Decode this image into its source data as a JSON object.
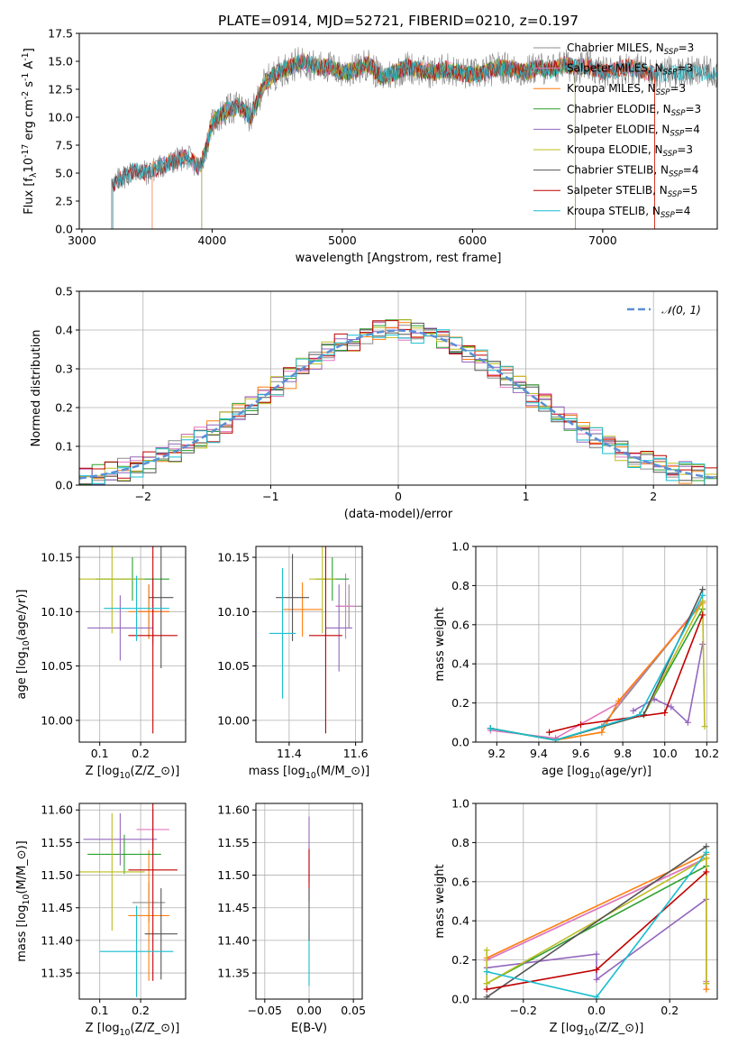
{
  "figure": {
    "title": "PLATE=0914, MJD=52721, FIBERID=0210, z=0.197"
  },
  "colors": {
    "Chabrier MILES": "#8c8c8c",
    "Salpeter MILES": "#e377c2",
    "Kroupa MILES": "#ff7f0e",
    "Chabrier ELODIE": "#2ca02c",
    "Salpeter ELODIE": "#9467bd",
    "Kroupa ELODIE": "#bcbd22",
    "Chabrier STELIB": "#555555",
    "Salpeter STELIB": "#c00000",
    "Kroupa STELIB": "#17becf",
    "orange": "#e07b21",
    "normal": "#5b8fd6"
  },
  "chart_data": [
    {
      "id": "spectrum",
      "type": "line",
      "title": "PLATE=0914, MJD=52721, FIBERID=0210, z=0.197",
      "xlabel": "wavelength [Angstrom, rest frame]",
      "ylabel": "Flux [f$_\\lambda$10$^{-17}$ erg cm$^{-2}$ s$^{-1}$ A$^{-1}$]",
      "xlim": [
        2980,
        7880
      ],
      "ylim": [
        0,
        17.5
      ],
      "xticks": [
        "3000",
        "4000",
        "5000",
        "6000",
        "7000"
      ],
      "yticks": [
        "0.0",
        "2.5",
        "5.0",
        "7.5",
        "10.0",
        "12.5",
        "15.0",
        "17.5"
      ],
      "grid": false,
      "legend_position": "right",
      "legend": [
        {
          "name": "Chabrier MILES",
          "sub": "3"
        },
        {
          "name": "Salpeter MILES",
          "sub": "3"
        },
        {
          "name": "Kroupa MILES",
          "sub": "3"
        },
        {
          "name": "Chabrier ELODIE",
          "sub": "3"
        },
        {
          "name": "Salpeter ELODIE",
          "sub": "4"
        },
        {
          "name": "Kroupa ELODIE",
          "sub": "3"
        },
        {
          "name": "Chabrier STELIB",
          "sub": "4"
        },
        {
          "name": "Salpeter STELIB",
          "sub": "5"
        },
        {
          "name": "Kroupa STELIB",
          "sub": "4"
        }
      ],
      "continuum": {
        "x": [
          3230,
          3300,
          3400,
          3500,
          3600,
          3700,
          3800,
          3900,
          3950,
          4000,
          4100,
          4200,
          4300,
          4400,
          4500,
          4600,
          4700,
          4800,
          4900,
          5000,
          5100,
          5200,
          5300,
          5400,
          5500,
          5600,
          5700,
          5800,
          5900,
          6000,
          6100,
          6200,
          6300,
          6400,
          6500,
          6600,
          6700,
          6800,
          6900,
          7000,
          7100,
          7200,
          7300,
          7400,
          7500
        ],
        "y": [
          3.8,
          4.6,
          5.2,
          5.0,
          5.6,
          6.0,
          6.5,
          5.5,
          7.0,
          9.5,
          10.5,
          11.0,
          10.0,
          13.0,
          14.0,
          14.5,
          15.0,
          14.5,
          14.5,
          14.0,
          14.2,
          14.8,
          13.5,
          14.0,
          14.5,
          14.2,
          14.0,
          14.3,
          14.0,
          13.8,
          14.0,
          14.5,
          14.3,
          14.0,
          14.5,
          14.2,
          14.7,
          14.5,
          14.5,
          14.0,
          14.2,
          14.5,
          14.2,
          13.8,
          14.0
        ]
      },
      "x_range_observed": [
        3230,
        7880
      ]
    },
    {
      "id": "residuals",
      "type": "area",
      "xlabel": "(data-model)/error",
      "ylabel": "Normed distribution",
      "xlim": [
        -2.5,
        2.5
      ],
      "ylim": [
        0,
        0.5
      ],
      "xticks": [
        "−2",
        "−1",
        "0",
        "1",
        "2"
      ],
      "yticks": [
        "0.0",
        "0.1",
        "0.2",
        "0.3",
        "0.4",
        "0.5"
      ],
      "grid": true,
      "legend_position": "top-right",
      "legend": [
        {
          "name": "𝒩(0, 1)"
        }
      ],
      "reference_curve": "normal distribution, mean 0, sigma 1",
      "bin_width": 0.1
    },
    {
      "id": "age_vs_Z",
      "type": "scatter",
      "xlabel": "Z [log$_{10}$(Z/Z$_\\odot$)]",
      "ylabel": "age  [log$_{10}$(age/yr)]",
      "xlim": [
        0.05,
        0.31
      ],
      "ylim": [
        9.98,
        10.16
      ],
      "xticks": [
        "0.1",
        "0.2"
      ],
      "yticks": [
        "10.00",
        "10.05",
        "10.10",
        "10.15"
      ],
      "grid": true,
      "points": [
        {
          "model": "Chabrier MILES",
          "x": 0.22,
          "y": 10.1,
          "xerr": 0.03,
          "yerr": 0.025
        },
        {
          "model": "Salpeter MILES",
          "x": 0.23,
          "y": 10.1,
          "xerr": 0.04,
          "yerr": 0.03
        },
        {
          "model": "Kroupa MILES",
          "x": 0.22,
          "y": 10.1,
          "xerr": 0.05,
          "yerr": 0.025
        },
        {
          "model": "Chabrier ELODIE",
          "x": 0.18,
          "y": 10.13,
          "xerr": 0.09,
          "yerr": 0.02
        },
        {
          "model": "Salpeter ELODIE",
          "x": 0.15,
          "y": 10.085,
          "xerr": 0.08,
          "yerr": 0.03
        },
        {
          "model": "Kroupa ELODIE",
          "x": 0.13,
          "y": 10.13,
          "xerr": 0.08,
          "yerr": 0.05
        },
        {
          "model": "Chabrier STELIB",
          "x": 0.25,
          "y": 10.113,
          "xerr": 0.03,
          "yerr": 0.065
        },
        {
          "model": "Salpeter STELIB",
          "x": 0.23,
          "y": 10.078,
          "xerr": 0.06,
          "yerr": 0.09
        },
        {
          "model": "Kroupa STELIB",
          "x": 0.19,
          "y": 10.103,
          "xerr": 0.08,
          "yerr": 0.03
        }
      ]
    },
    {
      "id": "age_vs_mass",
      "type": "scatter",
      "xlabel": "mass [log$_{10}$(M/M$_\\odot$)]",
      "ylabel": "",
      "xlim": [
        11.3,
        11.62
      ],
      "ylim": [
        9.98,
        10.16
      ],
      "xticks": [
        "11.4",
        "11.6"
      ],
      "yticks": [
        "10.00",
        "10.05",
        "10.10",
        "10.15"
      ],
      "grid": true,
      "points": [
        {
          "model": "Chabrier MILES",
          "x": 11.58,
          "y": 10.105,
          "xerr": 0.04,
          "yerr": 0.02
        },
        {
          "model": "Salpeter MILES",
          "x": 11.57,
          "y": 10.105,
          "xerr": 0.03,
          "yerr": 0.03
        },
        {
          "model": "Kroupa MILES",
          "x": 11.44,
          "y": 10.102,
          "xerr": 0.06,
          "yerr": 0.025
        },
        {
          "model": "Chabrier ELODIE",
          "x": 11.53,
          "y": 10.13,
          "xerr": 0.05,
          "yerr": 0.02
        },
        {
          "model": "Salpeter ELODIE",
          "x": 11.55,
          "y": 10.085,
          "xerr": 0.04,
          "yerr": 0.04
        },
        {
          "model": "Kroupa ELODIE",
          "x": 11.5,
          "y": 10.13,
          "xerr": 0.04,
          "yerr": 0.05
        },
        {
          "model": "Chabrier STELIB",
          "x": 11.41,
          "y": 10.113,
          "xerr": 0.05,
          "yerr": 0.04
        },
        {
          "model": "Salpeter STELIB",
          "x": 11.51,
          "y": 10.078,
          "xerr": 0.05,
          "yerr": 0.09
        },
        {
          "model": "Kroupa STELIB",
          "x": 11.38,
          "y": 10.08,
          "xerr": 0.04,
          "yerr": 0.06
        }
      ]
    },
    {
      "id": "mass_weight_vs_age",
      "type": "line",
      "xlabel": "age  [log$_{10}$(age/yr)]",
      "ylabel": "mass weight",
      "xlim": [
        9.1,
        10.25
      ],
      "ylim": [
        0,
        1.0
      ],
      "xticks": [
        "9.2",
        "9.4",
        "9.6",
        "9.8",
        "10.0",
        "10.2"
      ],
      "yticks": [
        "0.0",
        "0.2",
        "0.4",
        "0.6",
        "0.8",
        "1.0"
      ],
      "grid": true,
      "series": [
        {
          "model": "Chabrier MILES",
          "x": [
            9.17,
            9.48,
            9.7,
            10.18
          ],
          "y": [
            0.07,
            0.01,
            0.08,
            0.72
          ]
        },
        {
          "model": "Salpeter MILES",
          "x": [
            9.17,
            9.48,
            9.78,
            10.18
          ],
          "y": [
            0.06,
            0.02,
            0.2,
            0.72
          ]
        },
        {
          "model": "Kroupa MILES",
          "x": [
            9.17,
            9.48,
            9.7,
            9.78,
            10.18
          ],
          "y": [
            0.07,
            0.01,
            0.05,
            0.21,
            0.71
          ]
        },
        {
          "model": "Chabrier ELODIE",
          "x": [
            9.17,
            9.48,
            9.9,
            10.18
          ],
          "y": [
            0.07,
            0.01,
            0.14,
            0.68
          ]
        },
        {
          "model": "Salpeter ELODIE",
          "x": [
            9.85,
            9.95,
            10.03,
            10.11,
            10.18
          ],
          "y": [
            0.16,
            0.22,
            0.18,
            0.1,
            0.5
          ]
        },
        {
          "model": "Kroupa ELODIE",
          "x": [
            9.17,
            9.48,
            9.9,
            10.18,
            10.19
          ],
          "y": [
            0.07,
            0.01,
            0.14,
            0.72,
            0.08
          ]
        },
        {
          "model": "Chabrier STELIB",
          "x": [
            9.17,
            9.48,
            9.9,
            10.18
          ],
          "y": [
            0.07,
            0.01,
            0.14,
            0.78
          ]
        },
        {
          "model": "Salpeter STELIB",
          "x": [
            9.45,
            9.6,
            10.0,
            10.18
          ],
          "y": [
            0.05,
            0.09,
            0.15,
            0.65
          ]
        },
        {
          "model": "Kroupa STELIB",
          "x": [
            9.17,
            9.48,
            9.88,
            10.18
          ],
          "y": [
            0.07,
            0.01,
            0.14,
            0.75
          ]
        }
      ]
    },
    {
      "id": "mass_vs_Z",
      "type": "scatter",
      "xlabel": "Z [log$_{10}$(Z/Z$_\\odot$)]",
      "ylabel": "mass [log$_{10}$(M/M$_\\odot$)]",
      "xlim": [
        0.05,
        0.31
      ],
      "ylim": [
        11.31,
        11.61
      ],
      "xticks": [
        "0.1",
        "0.2"
      ],
      "yticks": [
        "11.35",
        "11.40",
        "11.45",
        "11.50",
        "11.55",
        "11.60"
      ],
      "grid": true,
      "points": [
        {
          "model": "Chabrier MILES",
          "x": 0.22,
          "y": 11.458,
          "xerr": 0.04,
          "yerr": 0.03
        },
        {
          "model": "Salpeter MILES",
          "x": 0.23,
          "y": 11.57,
          "xerr": 0.04,
          "yerr": 0.03
        },
        {
          "model": "Kroupa MILES",
          "x": 0.22,
          "y": 11.438,
          "xerr": 0.05,
          "yerr": 0.1
        },
        {
          "model": "Chabrier ELODIE",
          "x": 0.16,
          "y": 11.532,
          "xerr": 0.09,
          "yerr": 0.03
        },
        {
          "model": "Salpeter ELODIE",
          "x": 0.15,
          "y": 11.555,
          "xerr": 0.09,
          "yerr": 0.04
        },
        {
          "model": "Kroupa ELODIE",
          "x": 0.13,
          "y": 11.505,
          "xerr": 0.08,
          "yerr": 0.09
        },
        {
          "model": "Chabrier STELIB",
          "x": 0.25,
          "y": 11.41,
          "xerr": 0.04,
          "yerr": 0.07
        },
        {
          "model": "Salpeter STELIB",
          "x": 0.23,
          "y": 11.508,
          "xerr": 0.06,
          "yerr": 0.17
        },
        {
          "model": "Kroupa STELIB",
          "x": 0.19,
          "y": 11.383,
          "xerr": 0.09,
          "yerr": 0.07
        }
      ]
    },
    {
      "id": "mass_vs_ebv",
      "type": "scatter",
      "xlabel": "E(B-V)",
      "ylabel": "",
      "xlim": [
        -0.06,
        0.06
      ],
      "ylim": [
        11.31,
        11.61
      ],
      "xticks": [
        "−0.05",
        "0.00",
        "0.05"
      ],
      "yticks": [
        "11.35",
        "11.40",
        "11.45",
        "11.50",
        "11.55",
        "11.60"
      ],
      "grid": true,
      "points": [
        {
          "model": "Salpeter ELODIE",
          "x": 0.0,
          "y": 11.54,
          "yerr": 0.05
        },
        {
          "model": "Salpeter STELIB",
          "x": 0.0,
          "y": 11.5,
          "yerr": 0.04
        },
        {
          "model": "Kroupa STELIB",
          "x": 0.0,
          "y": 11.38,
          "yerr": 0.05
        },
        {
          "model": "Chabrier STELIB",
          "x": 0.0,
          "y": 11.44,
          "yerr": 0.04
        }
      ]
    },
    {
      "id": "mass_weight_vs_Z",
      "type": "line",
      "xlabel": "Z [log$_{10}$(Z/Z$_\\odot$)]",
      "ylabel": "mass weight",
      "xlim": [
        -0.33,
        0.33
      ],
      "ylim": [
        0,
        1.0
      ],
      "xticks": [
        "−0.2",
        "0.0",
        "0.2"
      ],
      "yticks": [
        "0.0",
        "0.2",
        "0.4",
        "0.6",
        "0.8",
        "1.0"
      ],
      "grid": true,
      "series": [
        {
          "model": "Chabrier MILES",
          "x": [
            -0.3,
            0.3,
            0.3
          ],
          "y": [
            0.2,
            0.72,
            0.08
          ]
        },
        {
          "model": "Salpeter MILES",
          "x": [
            -0.3,
            0.3,
            0.3
          ],
          "y": [
            0.2,
            0.72,
            0.09
          ]
        },
        {
          "model": "Kroupa MILES",
          "x": [
            -0.3,
            0.3,
            0.3
          ],
          "y": [
            0.21,
            0.74,
            0.05
          ]
        },
        {
          "model": "Chabrier ELODIE",
          "x": [
            -0.3,
            0.3
          ],
          "y": [
            0.08,
            0.68
          ]
        },
        {
          "model": "Salpeter ELODIE",
          "x": [
            -0.3,
            0.0,
            0.0,
            0.3
          ],
          "y": [
            0.16,
            0.23,
            0.1,
            0.51
          ]
        },
        {
          "model": "Kroupa ELODIE",
          "x": [
            -0.3,
            -0.3,
            0.3,
            0.3
          ],
          "y": [
            0.25,
            0.08,
            0.72,
            0.08
          ]
        },
        {
          "model": "Chabrier STELIB",
          "x": [
            -0.3,
            0.3
          ],
          "y": [
            0.01,
            0.78
          ]
        },
        {
          "model": "Salpeter STELIB",
          "x": [
            -0.3,
            0.0,
            0.3
          ],
          "y": [
            0.05,
            0.15,
            0.65
          ]
        },
        {
          "model": "Kroupa STELIB",
          "x": [
            -0.3,
            0.0,
            0.3
          ],
          "y": [
            0.14,
            0.01,
            0.75
          ]
        }
      ]
    }
  ]
}
